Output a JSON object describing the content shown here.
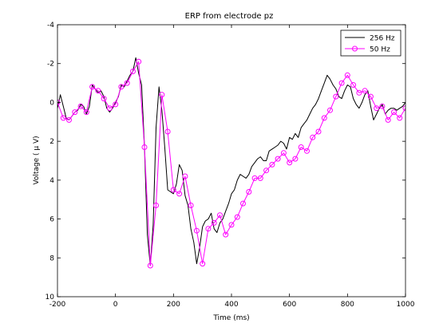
{
  "chart_data": {
    "type": "line",
    "title": "ERP from electrode pz",
    "xlabel": "Time (ms)",
    "ylabel": "Voltage ( μ V)",
    "xlim": [
      -200,
      1000
    ],
    "ylim": [
      -4,
      10
    ],
    "y_reversed": true,
    "x_ticks": [
      "-200",
      "0",
      "200",
      "400",
      "600",
      "800",
      "1000"
    ],
    "y_ticks": [
      "-4",
      "-2",
      "0",
      "2",
      "4",
      "6",
      "8",
      "10"
    ],
    "grid": false,
    "legend_position": "top-right",
    "series": [
      {
        "name": "256 Hz",
        "color": "#000000",
        "marker": "none",
        "x": [
          -200,
          -190,
          -180,
          -170,
          -160,
          -150,
          -140,
          -130,
          -120,
          -110,
          -100,
          -90,
          -80,
          -70,
          -60,
          -50,
          -40,
          -30,
          -20,
          -10,
          0,
          10,
          20,
          30,
          40,
          50,
          60,
          70,
          80,
          90,
          100,
          110,
          120,
          130,
          140,
          150,
          160,
          170,
          180,
          190,
          200,
          210,
          220,
          230,
          240,
          250,
          260,
          270,
          280,
          290,
          300,
          310,
          320,
          330,
          340,
          350,
          360,
          370,
          380,
          390,
          400,
          410,
          420,
          430,
          440,
          450,
          460,
          470,
          480,
          490,
          500,
          510,
          520,
          530,
          540,
          550,
          560,
          570,
          580,
          590,
          600,
          610,
          620,
          630,
          640,
          650,
          660,
          670,
          680,
          690,
          700,
          710,
          720,
          730,
          740,
          750,
          760,
          770,
          780,
          790,
          800,
          810,
          820,
          830,
          840,
          850,
          860,
          870,
          880,
          890,
          900,
          910,
          920,
          930,
          940,
          950,
          960,
          970,
          980,
          990,
          1000
        ],
        "y": [
          0.3,
          -0.4,
          0.2,
          0.8,
          0.9,
          0.7,
          0.5,
          0.4,
          0.1,
          0.2,
          0.6,
          0.2,
          -0.9,
          -0.7,
          -0.5,
          -0.6,
          -0.3,
          0.3,
          0.5,
          0.3,
          0.0,
          -0.3,
          -0.9,
          -0.8,
          -1.1,
          -1.4,
          -1.6,
          -2.3,
          -1.5,
          -0.9,
          2.3,
          6.8,
          8.4,
          6.3,
          1.3,
          -0.8,
          0.4,
          2.3,
          4.5,
          4.6,
          4.7,
          4.2,
          3.2,
          3.5,
          4.8,
          5.3,
          6.5,
          7.2,
          8.3,
          7.5,
          6.4,
          6.1,
          6.0,
          5.7,
          6.5,
          6.7,
          6.2,
          6.0,
          5.6,
          5.2,
          4.7,
          4.5,
          4.0,
          3.7,
          3.8,
          3.9,
          3.7,
          3.3,
          3.1,
          2.9,
          2.8,
          3.0,
          3.0,
          2.5,
          2.4,
          2.3,
          2.2,
          2.0,
          2.1,
          2.4,
          1.8,
          1.9,
          1.6,
          1.8,
          1.3,
          1.1,
          0.9,
          0.6,
          0.3,
          0.1,
          -0.2,
          -0.6,
          -1.0,
          -1.4,
          -1.2,
          -0.9,
          -0.7,
          -0.3,
          -0.2,
          -0.6,
          -0.9,
          -0.8,
          -0.2,
          0.1,
          0.3,
          0.0,
          -0.4,
          -0.6,
          0.2,
          0.9,
          0.6,
          0.3,
          0.1,
          0.6,
          0.4,
          0.3,
          0.3,
          0.4,
          0.3,
          0.2,
          0.0
        ],
        "_note": ""
      },
      {
        "name": "50 Hz",
        "color": "#ff00ff",
        "marker": "circle",
        "x": [
          -200,
          -180,
          -160,
          -140,
          -120,
          -100,
          -80,
          -60,
          -40,
          -20,
          0,
          20,
          40,
          60,
          80,
          100,
          120,
          140,
          160,
          180,
          200,
          220,
          240,
          260,
          280,
          300,
          320,
          340,
          360,
          380,
          400,
          420,
          440,
          460,
          480,
          500,
          520,
          540,
          560,
          580,
          600,
          620,
          640,
          660,
          680,
          700,
          720,
          740,
          760,
          780,
          800,
          820,
          840,
          860,
          880,
          900,
          920,
          940,
          960,
          980,
          1000
        ],
        "y": [
          0.0,
          0.8,
          0.9,
          0.5,
          0.2,
          0.5,
          -0.8,
          -0.6,
          -0.2,
          0.3,
          0.1,
          -0.8,
          -1.0,
          -1.6,
          -2.1,
          2.3,
          8.4,
          5.3,
          -0.4,
          1.5,
          4.5,
          4.7,
          3.8,
          5.3,
          6.6,
          8.3,
          6.5,
          6.2,
          5.8,
          6.8,
          6.3,
          5.9,
          5.2,
          4.6,
          3.9,
          3.9,
          3.5,
          3.2,
          2.9,
          2.6,
          3.1,
          2.9,
          2.3,
          2.5,
          1.8,
          1.5,
          0.8,
          0.4,
          -0.3,
          -1.0,
          -1.4,
          -0.9,
          -0.5,
          -0.6,
          -0.3,
          0.3,
          0.2,
          0.9,
          0.5,
          0.8,
          0.3
        ]
      }
    ]
  }
}
